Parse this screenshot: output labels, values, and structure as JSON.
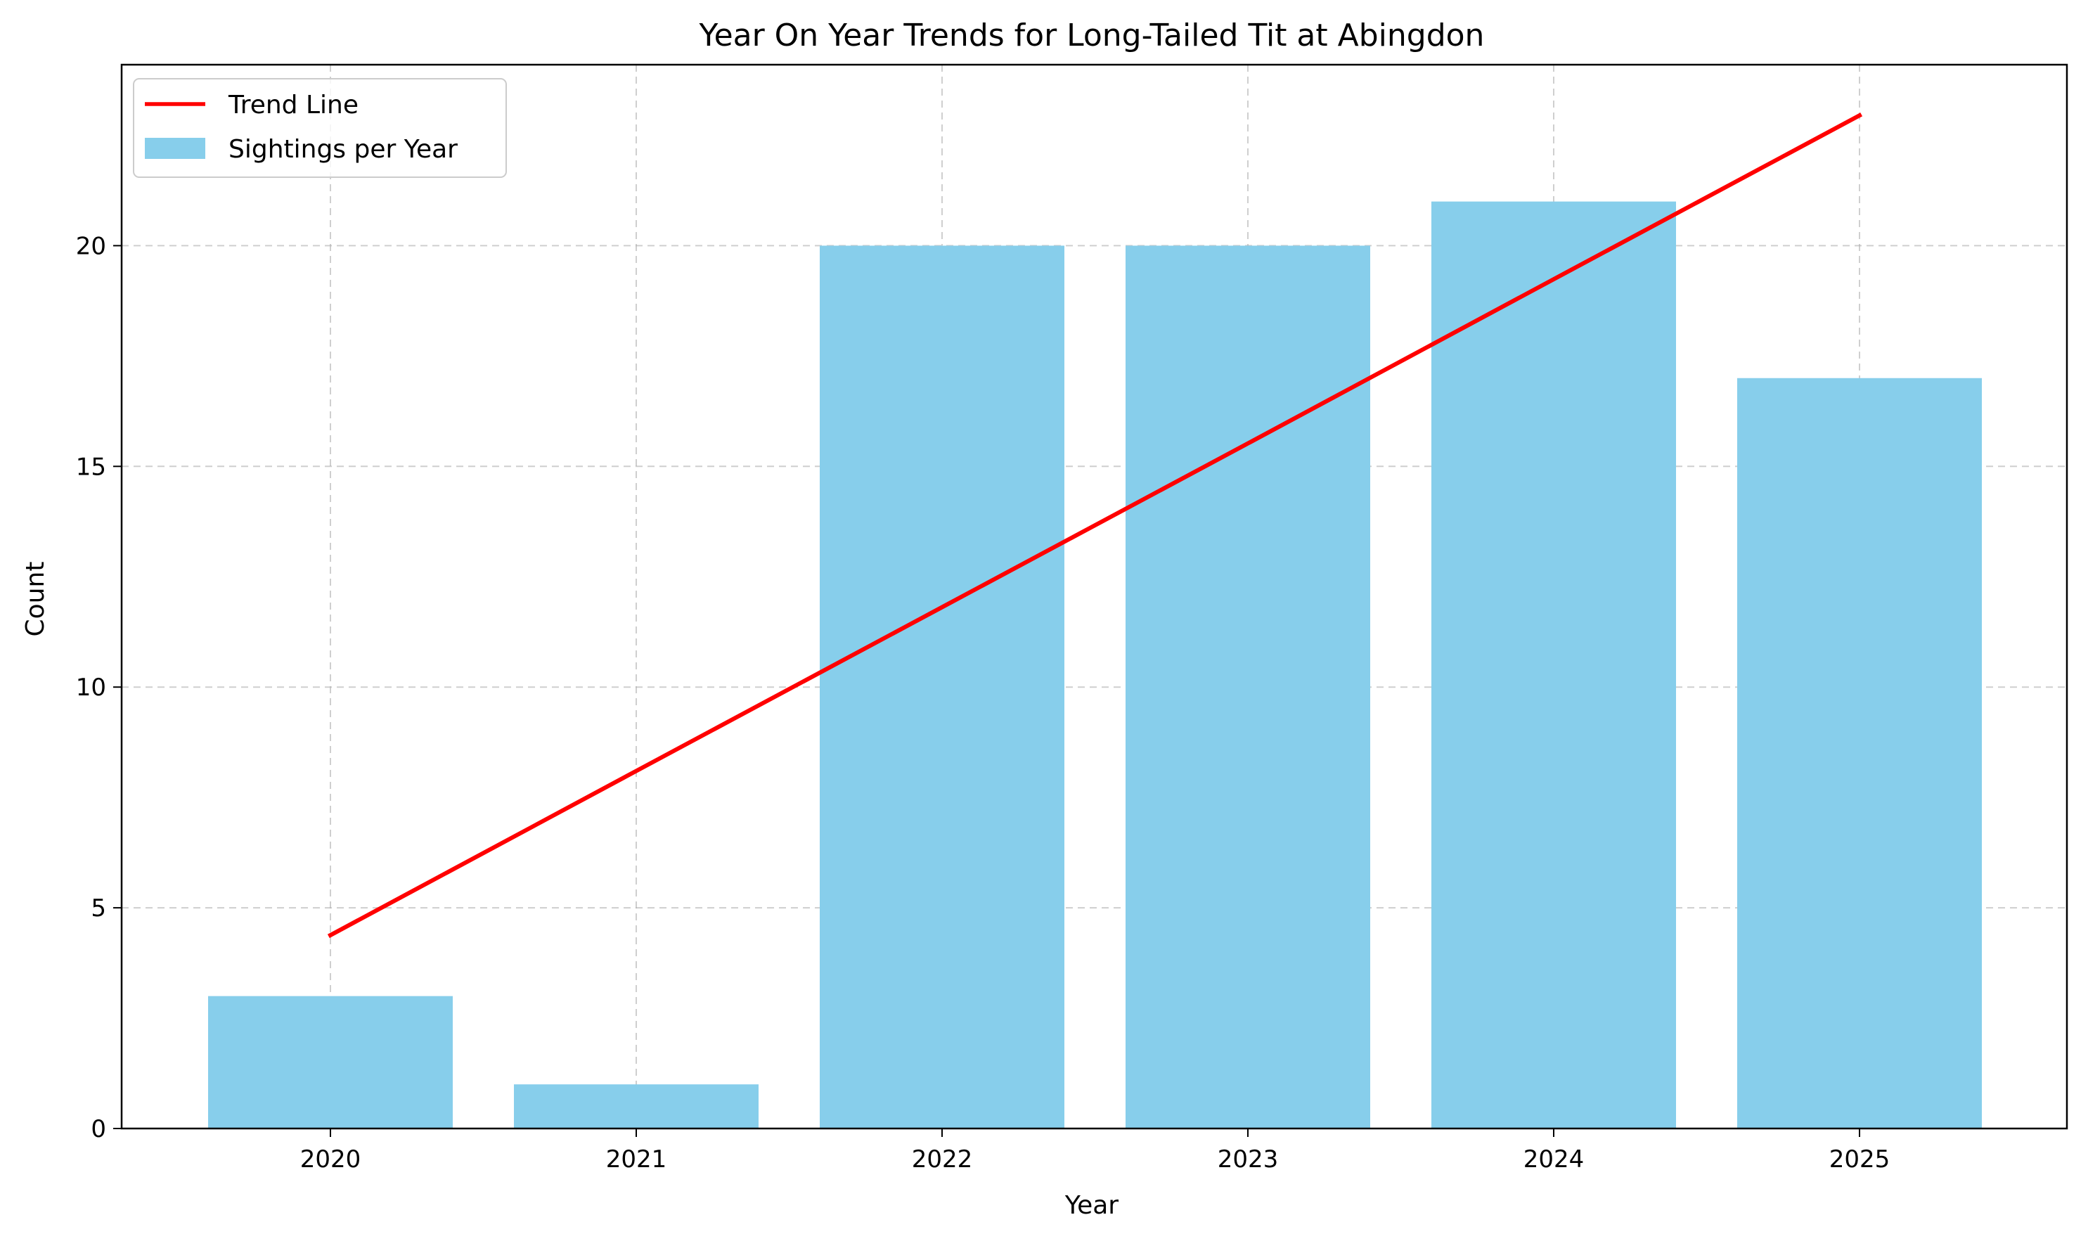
{
  "chart_data": {
    "type": "bar",
    "title": "Year On Year Trends for Long-Tailed Tit at Abingdon",
    "xlabel": "Year",
    "ylabel": "Count",
    "categories": [
      "2020",
      "2021",
      "2022",
      "2023",
      "2024",
      "2025"
    ],
    "series": [
      {
        "name": "Sightings per Year",
        "type": "bar",
        "values": [
          3,
          1,
          20,
          20,
          21,
          17
        ],
        "color": "#87ceeb"
      },
      {
        "name": "Trend Line",
        "type": "line",
        "values": [
          4.38,
          8.1,
          11.81,
          15.52,
          19.24,
          22.95
        ],
        "color": "#ff0000"
      }
    ],
    "ylim": [
      0,
      24.1
    ],
    "yticks": [
      0,
      5,
      10,
      15,
      20
    ],
    "grid": true,
    "legend": "top-left"
  }
}
